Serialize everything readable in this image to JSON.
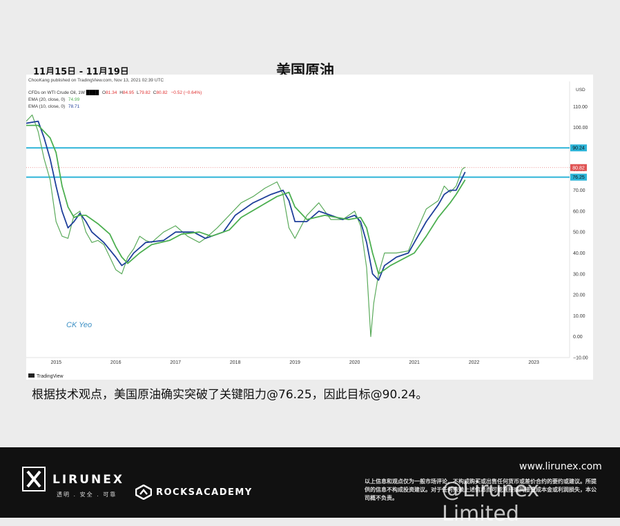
{
  "header": {
    "date_range": "11月15日 - 11月19日",
    "title": "美国原油"
  },
  "chart_info": {
    "publisher": "ChooKang published on TradingView.com, Nov 13, 2021 02:39 UTC",
    "symbol": "CFDs on WTI Crude Oil, 1W",
    "ohlc": {
      "o_label": "O",
      "o": "81.34",
      "h_label": "H",
      "h": "84.95",
      "l_label": "L",
      "l": "79.82",
      "c_label": "C",
      "c": "80.82",
      "change": "−0.52 (−0.64%)"
    },
    "ema20": {
      "label": "EMA (20, close, 0)",
      "value": "74.99"
    },
    "ema10": {
      "label": "EMA (10, close, 0)",
      "value": "78.71"
    },
    "currency": "USD",
    "author_tag": "CK Yeo",
    "tv_logo": "TradingView"
  },
  "chart_data": {
    "type": "line",
    "title": "美国原油",
    "x_tick_labels": [
      "2015",
      "2016",
      "2017",
      "2018",
      "2019",
      "2020",
      "2021",
      "2022",
      "2023"
    ],
    "y_tick_labels": [
      "110.00",
      "100.00",
      "90.00",
      "80.00",
      "70.00",
      "60.00",
      "50.00",
      "40.00",
      "30.00",
      "20.00",
      "10.00",
      "0.00",
      "−10.00"
    ],
    "ylim": [
      -10,
      122
    ],
    "xlim": [
      2014.5,
      2023.6
    ],
    "current_price": 80.82,
    "series": [
      {
        "role": "price",
        "color": "#5aaa5a",
        "x": [
          2014.5,
          2014.6,
          2014.7,
          2014.8,
          2014.9,
          2015.0,
          2015.1,
          2015.2,
          2015.3,
          2015.4,
          2015.5,
          2015.6,
          2015.7,
          2015.8,
          2015.9,
          2016.0,
          2016.1,
          2016.2,
          2016.3,
          2016.4,
          2016.5,
          2016.6,
          2016.8,
          2017.0,
          2017.2,
          2017.4,
          2017.5,
          2017.7,
          2017.9,
          2018.1,
          2018.3,
          2018.5,
          2018.7,
          2018.8,
          2018.9,
          2019.0,
          2019.2,
          2019.4,
          2019.6,
          2019.8,
          2020.0,
          2020.1,
          2020.2,
          2020.27,
          2020.32,
          2020.4,
          2020.5,
          2020.7,
          2020.9,
          2021.0,
          2021.2,
          2021.4,
          2021.5,
          2021.6,
          2021.7,
          2021.8,
          2021.85
        ],
        "values": [
          103,
          106,
          98,
          85,
          75,
          55,
          48,
          47,
          58,
          60,
          50,
          45,
          46,
          44,
          38,
          32,
          30,
          38,
          42,
          48,
          46,
          45,
          50,
          53,
          48,
          45,
          47,
          52,
          58,
          64,
          67,
          71,
          74,
          68,
          52,
          47,
          58,
          64,
          56,
          56,
          60,
          53,
          33,
          0,
          16,
          30,
          40,
          40,
          41,
          48,
          61,
          65,
          72,
          69,
          72,
          80,
          81
        ]
      },
      {
        "role": "ema10",
        "name": "EMA (10, close, 0)",
        "color": "#1f3f9a",
        "x": [
          2014.5,
          2014.7,
          2014.8,
          2014.9,
          2015.0,
          2015.1,
          2015.2,
          2015.3,
          2015.4,
          2015.5,
          2015.6,
          2015.8,
          2016.0,
          2016.1,
          2016.2,
          2016.3,
          2016.5,
          2016.8,
          2017.0,
          2017.3,
          2017.5,
          2017.8,
          2018.0,
          2018.3,
          2018.6,
          2018.8,
          2018.9,
          2019.0,
          2019.2,
          2019.4,
          2019.6,
          2019.8,
          2020.0,
          2020.1,
          2020.2,
          2020.3,
          2020.4,
          2020.5,
          2020.7,
          2020.9,
          2021.0,
          2021.2,
          2021.4,
          2021.5,
          2021.6,
          2021.7,
          2021.85
        ],
        "values": [
          102,
          103,
          95,
          85,
          72,
          60,
          52,
          55,
          59,
          55,
          50,
          45,
          38,
          34,
          36,
          40,
          45,
          46,
          50,
          50,
          47,
          50,
          58,
          64,
          68,
          70,
          65,
          55,
          55,
          60,
          58,
          56,
          58,
          55,
          45,
          30,
          27,
          34,
          38,
          40,
          45,
          55,
          63,
          68,
          70,
          70,
          78.71
        ]
      },
      {
        "role": "ema20",
        "name": "EMA (20, close, 0)",
        "color": "#4caf50",
        "x": [
          2014.5,
          2014.7,
          2014.9,
          2015.0,
          2015.1,
          2015.2,
          2015.3,
          2015.4,
          2015.5,
          2015.7,
          2015.9,
          2016.0,
          2016.1,
          2016.2,
          2016.4,
          2016.6,
          2016.9,
          2017.1,
          2017.4,
          2017.6,
          2017.9,
          2018.1,
          2018.4,
          2018.7,
          2018.9,
          2019.0,
          2019.2,
          2019.5,
          2019.7,
          2019.9,
          2020.1,
          2020.2,
          2020.3,
          2020.4,
          2020.6,
          2020.8,
          2021.0,
          2021.2,
          2021.4,
          2021.6,
          2021.7,
          2021.85
        ],
        "values": [
          101,
          101,
          95,
          88,
          72,
          62,
          57,
          58,
          58,
          54,
          49,
          43,
          38,
          35,
          40,
          44,
          46,
          49,
          50,
          48,
          51,
          57,
          62,
          67,
          69,
          62,
          56,
          58,
          57,
          56,
          57,
          52,
          40,
          30,
          34,
          37,
          40,
          48,
          57,
          64,
          68,
          74.99
        ]
      }
    ],
    "levels": [
      {
        "value": 90.24,
        "label": "90.24",
        "color": "#2cb4d8"
      },
      {
        "value": 76.25,
        "label": "76.25",
        "color": "#2cb4d8"
      }
    ],
    "grid": false
  },
  "caption": {
    "text": "根据技术观点，美国原油确实突破了关键阻力@76.25，因此目标@90.24。"
  },
  "footer": {
    "brand": "LIRUNEX",
    "brand_tagline": "透明 . 安全 . 可靠",
    "partner": "ROCKSACADEMY",
    "website": "www.lirunex.com",
    "disclaimer": "以上信息和观点仅为一般市场评论，不构成购买或出售任何货币或差价合约的要约或建议。所提供的信息不构成投资建议。对于任何依赖上述信息而可能直接或间接造成本金或利润损失，本公司概不负责。",
    "watermark": "@Lirunex Limited"
  }
}
